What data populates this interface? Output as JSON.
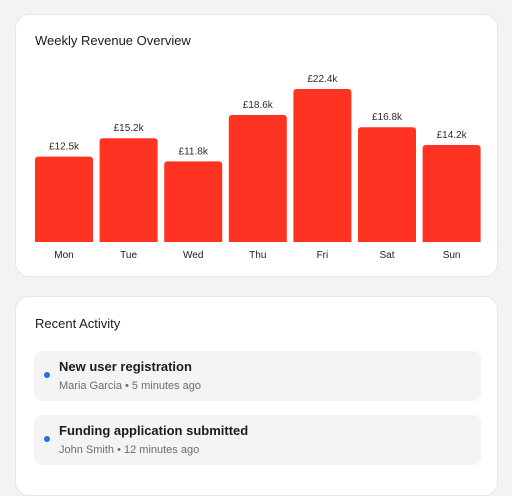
{
  "revenue_card": {
    "title": "Weekly Revenue Overview"
  },
  "chart_data": {
    "type": "bar",
    "categories": [
      "Mon",
      "Tue",
      "Wed",
      "Thu",
      "Fri",
      "Sat",
      "Sun"
    ],
    "values": [
      12.5,
      15.2,
      11.8,
      18.6,
      22.4,
      16.8,
      14.2
    ],
    "value_labels": [
      "£12.5k",
      "£15.2k",
      "£11.8k",
      "£18.6k",
      "£22.4k",
      "£16.8k",
      "£14.2k"
    ],
    "title": "Weekly Revenue Overview",
    "xlabel": "",
    "ylabel": "",
    "ylim": [
      0,
      22.4
    ],
    "grid": false,
    "legend": "none",
    "bar_color": "#ff3322"
  },
  "activity_card": {
    "title": "Recent Activity",
    "dot_color": "#1a73e8",
    "items": [
      {
        "title": "New user registration",
        "meta": "Maria Garcia • 5 minutes ago"
      },
      {
        "title": "Funding application submitted",
        "meta": "John Smith • 12 minutes ago"
      }
    ]
  }
}
